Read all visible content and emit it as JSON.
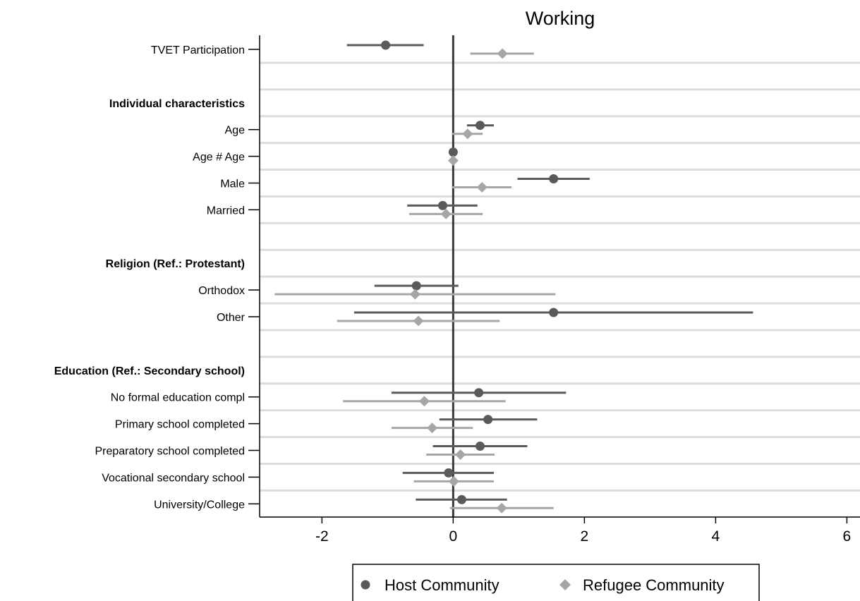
{
  "chart_data": {
    "type": "scatter",
    "title": "Working",
    "xlim": [
      -2.95,
      6.2
    ],
    "xticks": [
      -2,
      0,
      2,
      4,
      6
    ],
    "zero_line": 0,
    "grid": "horizontal",
    "rows": [
      {
        "kind": "item",
        "label": "TVET Participation",
        "host": {
          "est": -1.03,
          "lo": -1.62,
          "hi": -0.45
        },
        "refugee": {
          "est": 0.75,
          "lo": 0.26,
          "hi": 1.23
        }
      },
      {
        "kind": "spacer"
      },
      {
        "kind": "header",
        "label": "Individual characteristics"
      },
      {
        "kind": "item",
        "label": "Age",
        "host": {
          "est": 0.41,
          "lo": 0.21,
          "hi": 0.62
        },
        "refugee": {
          "est": 0.22,
          "lo": -0.02,
          "hi": 0.45
        }
      },
      {
        "kind": "item",
        "label": "Age # Age",
        "host": {
          "est": 0.0,
          "lo": -0.02,
          "hi": 0.02
        },
        "refugee": {
          "est": 0.0,
          "lo": -0.02,
          "hi": 0.02
        }
      },
      {
        "kind": "item",
        "label": "Male",
        "host": {
          "est": 1.53,
          "lo": 0.98,
          "hi": 2.08
        },
        "refugee": {
          "est": 0.44,
          "lo": -0.02,
          "hi": 0.89
        }
      },
      {
        "kind": "item",
        "label": "Married",
        "host": {
          "est": -0.16,
          "lo": -0.7,
          "hi": 0.37
        },
        "refugee": {
          "est": -0.11,
          "lo": -0.67,
          "hi": 0.45
        }
      },
      {
        "kind": "spacer"
      },
      {
        "kind": "header",
        "label": "Religion (Ref.: Protestant)"
      },
      {
        "kind": "item",
        "label": "Orthodox",
        "host": {
          "est": -0.56,
          "lo": -1.2,
          "hi": 0.08
        },
        "refugee": {
          "est": -0.58,
          "lo": -2.72,
          "hi": 1.56
        }
      },
      {
        "kind": "item",
        "label": "Other",
        "host": {
          "est": 1.53,
          "lo": -1.51,
          "hi": 4.57
        },
        "refugee": {
          "est": -0.53,
          "lo": -1.77,
          "hi": 0.71
        }
      },
      {
        "kind": "spacer"
      },
      {
        "kind": "header",
        "label": "Education (Ref.: Secondary school)"
      },
      {
        "kind": "item",
        "label": "No formal education compl",
        "host": {
          "est": 0.39,
          "lo": -0.94,
          "hi": 1.72
        },
        "refugee": {
          "est": -0.44,
          "lo": -1.68,
          "hi": 0.8
        }
      },
      {
        "kind": "item",
        "label": "Primary school completed",
        "host": {
          "est": 0.53,
          "lo": -0.21,
          "hi": 1.28
        },
        "refugee": {
          "est": -0.32,
          "lo": -0.94,
          "hi": 0.3
        }
      },
      {
        "kind": "item",
        "label": "Preparatory school completed",
        "host": {
          "est": 0.41,
          "lo": -0.31,
          "hi": 1.13
        },
        "refugee": {
          "est": 0.11,
          "lo": -0.41,
          "hi": 0.63
        }
      },
      {
        "kind": "item",
        "label": "Vocational secondary school",
        "host": {
          "est": -0.07,
          "lo": -0.77,
          "hi": 0.62
        },
        "refugee": {
          "est": 0.01,
          "lo": -0.6,
          "hi": 0.62
        }
      },
      {
        "kind": "item",
        "label": "University/College",
        "host": {
          "est": 0.13,
          "lo": -0.57,
          "hi": 0.82
        },
        "refugee": {
          "est": 0.74,
          "lo": -0.05,
          "hi": 1.53
        }
      }
    ],
    "series": [
      {
        "key": "host",
        "name": "Host Community",
        "marker": "circle",
        "color": "#5a5a5a"
      },
      {
        "key": "refugee",
        "name": "Refugee Community",
        "marker": "diamond",
        "color": "#a6a6a6"
      }
    ],
    "legend": "bottom"
  }
}
